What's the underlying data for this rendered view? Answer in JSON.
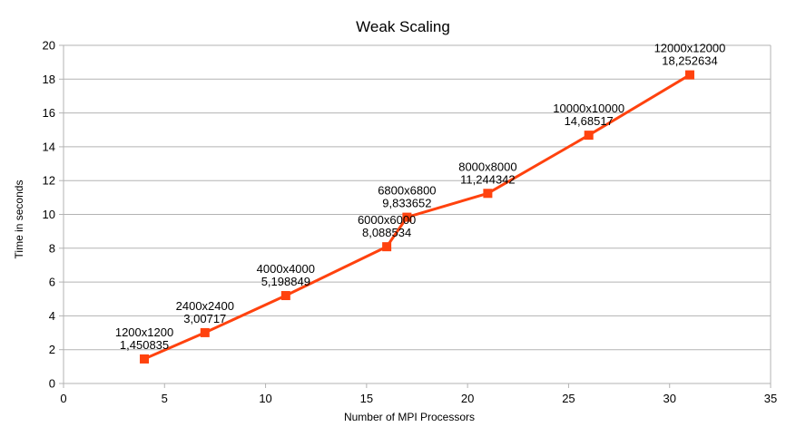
{
  "chart_data": {
    "type": "line",
    "title": "Weak Scaling",
    "xlabel": "Number of MPI Processors",
    "ylabel": "Time in seconds",
    "xlim": [
      0,
      35
    ],
    "ylim": [
      0,
      20
    ],
    "xticks": [
      0,
      5,
      10,
      15,
      20,
      25,
      30,
      35
    ],
    "yticks": [
      0,
      2,
      4,
      6,
      8,
      10,
      12,
      14,
      16,
      18,
      20
    ],
    "grid": "horizontal",
    "legend": "none",
    "color": "#ff420e",
    "series": [
      {
        "points": [
          {
            "x": 4,
            "y": 1.450835,
            "label_top": "1200x1200",
            "label_bottom": "1,450835"
          },
          {
            "x": 7,
            "y": 3.00717,
            "label_top": "2400x2400",
            "label_bottom": "3,00717"
          },
          {
            "x": 11,
            "y": 5.198849,
            "label_top": "4000x4000",
            "label_bottom": "5,198849"
          },
          {
            "x": 16,
            "y": 8.088534,
            "label_top": "6000x6000",
            "label_bottom": "8,088534"
          },
          {
            "x": 17,
            "y": 9.833652,
            "label_top": "6800x6800",
            "label_bottom": "9,833652"
          },
          {
            "x": 21,
            "y": 11.244342,
            "label_top": "8000x8000",
            "label_bottom": "11,244342"
          },
          {
            "x": 26,
            "y": 14.68517,
            "label_top": "10000x10000",
            "label_bottom": "14,68517"
          },
          {
            "x": 31,
            "y": 18.252634,
            "label_top": "12000x12000",
            "label_bottom": "18,252634"
          }
        ]
      }
    ]
  }
}
